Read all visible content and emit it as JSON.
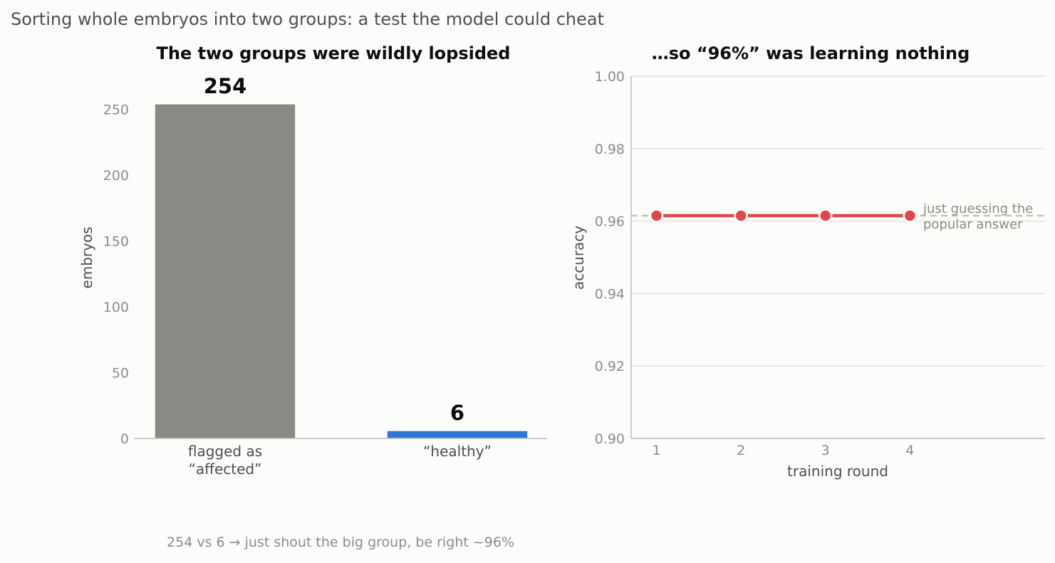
{
  "page": {
    "suptitle": "Sorting whole embryos into two groups: a test the model could cheat",
    "caption": "254 vs 6  →  just shout the big group, be right ~96%"
  },
  "colors": {
    "affected": "#8a8983",
    "healthy": "#2f78d1",
    "accuracy_line": "#de4848",
    "baseline": "#c2c2bc",
    "grid": "#e2e2e0",
    "axis": "#bdbdbd",
    "tick_text": "#8c8c8c",
    "label_text": "#4f4f4f",
    "title_text": "#0d0d0d",
    "annotation_text": "#8a8a84"
  },
  "chart_data": [
    {
      "type": "bar",
      "title": "The two groups were wildly lopsided",
      "ylabel": "embryos",
      "xlabel": "",
      "categories": [
        [
          "flagged as",
          "“affected”"
        ],
        [
          "“healthy”"
        ]
      ],
      "values": [
        254,
        6
      ],
      "data_labels": [
        "254",
        "6"
      ],
      "ylim": [
        0,
        275
      ],
      "yticks": [
        0,
        50,
        100,
        150,
        200,
        250
      ],
      "grid": false
    },
    {
      "type": "line",
      "title": "…so “96%” was learning nothing",
      "xlabel": "training round",
      "ylabel": "accuracy",
      "x": [
        1,
        2,
        3,
        4
      ],
      "xticks": [
        1,
        2,
        3,
        4
      ],
      "xlim": [
        0.7,
        5.6
      ],
      "ylim": [
        0.9,
        1.0
      ],
      "yticks": [
        "0.90",
        "0.92",
        "0.94",
        "0.96",
        "0.98",
        "1.00"
      ],
      "series": [
        {
          "values": [
            0.9615,
            0.9615,
            0.9615,
            0.9615
          ]
        }
      ],
      "baseline": {
        "value": 0.9615,
        "label": [
          "just guessing the",
          "popular answer"
        ]
      },
      "grid": "horizontal"
    }
  ]
}
